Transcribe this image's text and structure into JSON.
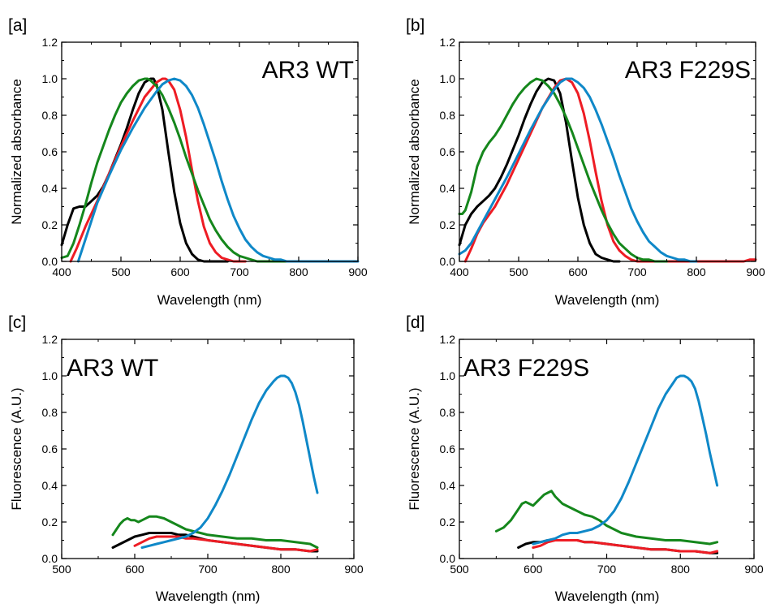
{
  "chart_data": [
    {
      "panel_label": "[a]",
      "type": "line",
      "annotation": "AR3 WT",
      "xlabel": "Wavelength (nm)",
      "ylabel": "Normalized absorbance",
      "xlim": [
        400,
        900
      ],
      "ylim": [
        0,
        1.2
      ],
      "xticks": [
        400,
        500,
        600,
        700,
        800,
        900
      ],
      "yticks": [
        0.0,
        0.2,
        0.4,
        0.6,
        0.8,
        1.0,
        1.2
      ],
      "grid": false,
      "series": [
        {
          "color": "#000000",
          "x": [
            400,
            410,
            420,
            430,
            440,
            450,
            460,
            470,
            480,
            490,
            500,
            510,
            520,
            530,
            540,
            550,
            555,
            560,
            570,
            580,
            590,
            600,
            610,
            620,
            630,
            640,
            650,
            660,
            670,
            680
          ],
          "y": [
            0.09,
            0.2,
            0.29,
            0.3,
            0.3,
            0.33,
            0.36,
            0.41,
            0.48,
            0.56,
            0.64,
            0.73,
            0.83,
            0.92,
            0.98,
            1.0,
            1.0,
            0.97,
            0.83,
            0.6,
            0.38,
            0.21,
            0.1,
            0.04,
            0.01,
            0.0,
            0.0,
            0.0,
            0.0,
            0.0
          ]
        },
        {
          "color": "#ee1c24",
          "x": [
            415,
            425,
            440,
            460,
            480,
            500,
            520,
            540,
            560,
            570,
            575,
            580,
            590,
            600,
            610,
            620,
            630,
            640,
            650,
            660,
            670,
            680,
            690,
            700,
            710
          ],
          "y": [
            0.0,
            0.07,
            0.19,
            0.33,
            0.48,
            0.63,
            0.77,
            0.9,
            0.98,
            1.0,
            1.0,
            0.99,
            0.94,
            0.83,
            0.68,
            0.5,
            0.33,
            0.19,
            0.1,
            0.05,
            0.02,
            0.01,
            0.0,
            0.0,
            0.0
          ]
        },
        {
          "color": "#15871c",
          "x": [
            400,
            410,
            420,
            430,
            440,
            450,
            460,
            470,
            480,
            490,
            500,
            510,
            520,
            530,
            540,
            545,
            550,
            560,
            570,
            580,
            590,
            600,
            610,
            620,
            630,
            640,
            650,
            660,
            670,
            680,
            690,
            700,
            710,
            720,
            730,
            740,
            750,
            760,
            770,
            780,
            790,
            800
          ],
          "y": [
            0.02,
            0.03,
            0.1,
            0.2,
            0.31,
            0.43,
            0.54,
            0.63,
            0.72,
            0.8,
            0.87,
            0.92,
            0.96,
            0.99,
            1.0,
            1.0,
            0.99,
            0.96,
            0.91,
            0.84,
            0.76,
            0.67,
            0.57,
            0.48,
            0.39,
            0.31,
            0.23,
            0.17,
            0.12,
            0.08,
            0.05,
            0.03,
            0.02,
            0.01,
            0.0,
            0.0,
            0.0,
            0.0,
            0.0,
            0.0,
            0.0,
            0.0
          ]
        },
        {
          "color": "#0f88c8",
          "x": [
            428,
            440,
            460,
            480,
            500,
            520,
            540,
            560,
            570,
            580,
            590,
            600,
            610,
            620,
            630,
            640,
            650,
            660,
            670,
            680,
            690,
            700,
            710,
            720,
            730,
            740,
            750,
            760,
            770,
            780,
            800,
            900
          ],
          "y": [
            0.0,
            0.12,
            0.32,
            0.47,
            0.61,
            0.73,
            0.84,
            0.93,
            0.97,
            0.99,
            1.0,
            0.99,
            0.96,
            0.91,
            0.84,
            0.75,
            0.65,
            0.55,
            0.44,
            0.34,
            0.25,
            0.18,
            0.12,
            0.08,
            0.05,
            0.03,
            0.02,
            0.01,
            0.01,
            0.0,
            0.0,
            0.0
          ]
        }
      ]
    },
    {
      "panel_label": "[b]",
      "type": "line",
      "annotation": "AR3 F229S",
      "xlabel": "Wavelength (nm)",
      "ylabel": "Normalized absorbance",
      "xlim": [
        400,
        900
      ],
      "ylim": [
        0,
        1.2
      ],
      "xticks": [
        400,
        500,
        600,
        700,
        800,
        900
      ],
      "yticks": [
        0.0,
        0.2,
        0.4,
        0.6,
        0.8,
        1.0,
        1.2
      ],
      "grid": false,
      "series": [
        {
          "color": "#000000",
          "x": [
            400,
            410,
            420,
            430,
            440,
            450,
            460,
            470,
            480,
            490,
            500,
            510,
            520,
            530,
            540,
            550,
            560,
            570,
            580,
            590,
            600,
            610,
            620,
            630,
            640,
            650,
            660,
            670
          ],
          "y": [
            0.09,
            0.2,
            0.26,
            0.3,
            0.33,
            0.36,
            0.4,
            0.46,
            0.53,
            0.61,
            0.69,
            0.78,
            0.86,
            0.93,
            0.98,
            1.0,
            0.99,
            0.92,
            0.76,
            0.55,
            0.35,
            0.2,
            0.1,
            0.04,
            0.02,
            0.01,
            0.0,
            0.0
          ]
        },
        {
          "color": "#ee1c24",
          "x": [
            410,
            420,
            430,
            440,
            460,
            480,
            500,
            520,
            540,
            560,
            570,
            580,
            590,
            600,
            610,
            620,
            630,
            640,
            650,
            660,
            670,
            680,
            690,
            700,
            710,
            720,
            730,
            750,
            800,
            850,
            880,
            890,
            900
          ],
          "y": [
            0.0,
            0.07,
            0.15,
            0.21,
            0.3,
            0.42,
            0.56,
            0.7,
            0.84,
            0.95,
            0.99,
            1.0,
            0.98,
            0.92,
            0.81,
            0.66,
            0.49,
            0.33,
            0.2,
            0.11,
            0.06,
            0.03,
            0.01,
            0.0,
            0.0,
            0.0,
            0.0,
            0.0,
            0.0,
            0.0,
            0.0,
            0.01,
            0.01
          ]
        },
        {
          "color": "#15871c",
          "x": [
            400,
            405,
            410,
            420,
            430,
            440,
            450,
            460,
            470,
            480,
            490,
            500,
            510,
            520,
            530,
            540,
            550,
            560,
            570,
            580,
            590,
            600,
            610,
            620,
            630,
            640,
            650,
            660,
            670,
            680,
            690,
            700,
            710,
            720,
            730,
            740,
            750
          ],
          "y": [
            0.26,
            0.26,
            0.28,
            0.38,
            0.52,
            0.6,
            0.65,
            0.69,
            0.74,
            0.8,
            0.86,
            0.91,
            0.95,
            0.98,
            1.0,
            0.99,
            0.96,
            0.92,
            0.86,
            0.79,
            0.71,
            0.62,
            0.53,
            0.44,
            0.36,
            0.28,
            0.21,
            0.15,
            0.1,
            0.07,
            0.04,
            0.02,
            0.01,
            0.01,
            0.0,
            0.0,
            0.0
          ]
        },
        {
          "color": "#0f88c8",
          "x": [
            400,
            410,
            420,
            430,
            440,
            460,
            480,
            500,
            520,
            540,
            560,
            570,
            580,
            585,
            590,
            600,
            610,
            620,
            630,
            640,
            650,
            660,
            670,
            680,
            690,
            700,
            710,
            720,
            730,
            740,
            750,
            760,
            770,
            780,
            790,
            800
          ],
          "y": [
            0.04,
            0.06,
            0.1,
            0.16,
            0.22,
            0.34,
            0.46,
            0.59,
            0.72,
            0.84,
            0.94,
            0.98,
            1.0,
            1.0,
            1.0,
            0.98,
            0.95,
            0.9,
            0.83,
            0.75,
            0.66,
            0.57,
            0.47,
            0.38,
            0.29,
            0.22,
            0.16,
            0.11,
            0.08,
            0.05,
            0.03,
            0.02,
            0.01,
            0.01,
            0.0,
            0.0
          ]
        }
      ]
    },
    {
      "panel_label": "[c]",
      "type": "line",
      "annotation": "AR3 WT",
      "xlabel": "Wavelength (nm)",
      "ylabel": "Fluorescence (A.U.)",
      "xlim": [
        500,
        900
      ],
      "ylim": [
        0,
        1.2
      ],
      "xticks": [
        500,
        600,
        700,
        800,
        900
      ],
      "yticks": [
        0.0,
        0.2,
        0.4,
        0.6,
        0.8,
        1.0,
        1.2
      ],
      "grid": false,
      "series": [
        {
          "color": "#000000",
          "x": [
            570,
            580,
            590,
            600,
            610,
            620,
            630,
            640,
            650,
            660,
            670,
            680,
            690,
            700,
            720,
            740,
            760,
            780,
            800,
            820,
            840,
            850
          ],
          "y": [
            0.06,
            0.08,
            0.1,
            0.12,
            0.13,
            0.14,
            0.14,
            0.14,
            0.14,
            0.13,
            0.13,
            0.12,
            0.11,
            0.1,
            0.09,
            0.08,
            0.07,
            0.06,
            0.05,
            0.05,
            0.04,
            0.04
          ]
        },
        {
          "color": "#ee1c24",
          "x": [
            600,
            610,
            620,
            630,
            640,
            650,
            660,
            670,
            680,
            700,
            720,
            740,
            760,
            780,
            800,
            820,
            840,
            850
          ],
          "y": [
            0.07,
            0.09,
            0.11,
            0.12,
            0.12,
            0.12,
            0.12,
            0.11,
            0.11,
            0.1,
            0.09,
            0.08,
            0.07,
            0.06,
            0.05,
            0.05,
            0.04,
            0.05
          ]
        },
        {
          "color": "#15871c",
          "x": [
            570,
            575,
            580,
            585,
            590,
            595,
            600,
            605,
            610,
            620,
            630,
            640,
            650,
            660,
            670,
            680,
            690,
            700,
            720,
            740,
            760,
            780,
            800,
            820,
            840,
            850
          ],
          "y": [
            0.13,
            0.16,
            0.19,
            0.21,
            0.22,
            0.21,
            0.21,
            0.2,
            0.21,
            0.23,
            0.23,
            0.22,
            0.2,
            0.18,
            0.16,
            0.15,
            0.14,
            0.13,
            0.12,
            0.11,
            0.11,
            0.1,
            0.1,
            0.09,
            0.08,
            0.06
          ]
        },
        {
          "color": "#0f88c8",
          "x": [
            610,
            620,
            630,
            640,
            650,
            660,
            670,
            680,
            690,
            700,
            710,
            720,
            730,
            740,
            750,
            760,
            770,
            780,
            790,
            795,
            800,
            805,
            810,
            815,
            820,
            825,
            830,
            835,
            840,
            845,
            850
          ],
          "y": [
            0.06,
            0.07,
            0.08,
            0.09,
            0.1,
            0.11,
            0.12,
            0.14,
            0.17,
            0.22,
            0.29,
            0.37,
            0.46,
            0.56,
            0.66,
            0.76,
            0.85,
            0.92,
            0.97,
            0.99,
            1.0,
            1.0,
            0.99,
            0.96,
            0.91,
            0.84,
            0.75,
            0.65,
            0.55,
            0.45,
            0.36
          ]
        }
      ]
    },
    {
      "panel_label": "[d]",
      "type": "line",
      "annotation": "AR3 F229S",
      "xlabel": "Wavelength (nm)",
      "ylabel": "Fluorescence (A.U.)",
      "xlim": [
        500,
        900
      ],
      "ylim": [
        0,
        1.2
      ],
      "xticks": [
        500,
        600,
        700,
        800,
        900
      ],
      "yticks": [
        0.0,
        0.2,
        0.4,
        0.6,
        0.8,
        1.0,
        1.2
      ],
      "grid": false,
      "series": [
        {
          "color": "#000000",
          "x": [
            580,
            590,
            600,
            610,
            620,
            630,
            640,
            650,
            660,
            670,
            680,
            700,
            720,
            740,
            760,
            780,
            800,
            820,
            840,
            850
          ],
          "y": [
            0.06,
            0.08,
            0.09,
            0.09,
            0.1,
            0.1,
            0.1,
            0.1,
            0.1,
            0.09,
            0.09,
            0.08,
            0.07,
            0.06,
            0.05,
            0.05,
            0.04,
            0.04,
            0.03,
            0.03
          ]
        },
        {
          "color": "#ee1c24",
          "x": [
            600,
            610,
            620,
            630,
            640,
            650,
            660,
            670,
            680,
            700,
            720,
            740,
            760,
            780,
            800,
            820,
            840,
            850
          ],
          "y": [
            0.06,
            0.07,
            0.09,
            0.1,
            0.1,
            0.1,
            0.1,
            0.09,
            0.09,
            0.08,
            0.07,
            0.06,
            0.05,
            0.05,
            0.04,
            0.04,
            0.03,
            0.04
          ]
        },
        {
          "color": "#15871c",
          "x": [
            550,
            560,
            570,
            580,
            585,
            590,
            595,
            600,
            605,
            610,
            615,
            620,
            625,
            630,
            640,
            650,
            660,
            670,
            680,
            690,
            700,
            710,
            720,
            740,
            760,
            780,
            800,
            820,
            840,
            850
          ],
          "y": [
            0.15,
            0.17,
            0.21,
            0.27,
            0.3,
            0.31,
            0.3,
            0.29,
            0.31,
            0.33,
            0.35,
            0.36,
            0.37,
            0.34,
            0.3,
            0.28,
            0.26,
            0.24,
            0.23,
            0.21,
            0.18,
            0.16,
            0.14,
            0.12,
            0.11,
            0.1,
            0.1,
            0.09,
            0.08,
            0.09
          ]
        },
        {
          "color": "#0f88c8",
          "x": [
            600,
            610,
            620,
            630,
            640,
            650,
            660,
            670,
            680,
            690,
            700,
            710,
            720,
            730,
            740,
            750,
            760,
            770,
            780,
            790,
            795,
            800,
            805,
            810,
            815,
            820,
            825,
            830,
            835,
            840,
            845,
            850
          ],
          "y": [
            0.08,
            0.09,
            0.1,
            0.11,
            0.13,
            0.14,
            0.14,
            0.15,
            0.16,
            0.18,
            0.21,
            0.26,
            0.33,
            0.42,
            0.52,
            0.62,
            0.72,
            0.82,
            0.9,
            0.96,
            0.99,
            1.0,
            1.0,
            0.99,
            0.97,
            0.93,
            0.86,
            0.77,
            0.68,
            0.58,
            0.49,
            0.4
          ]
        }
      ]
    }
  ]
}
